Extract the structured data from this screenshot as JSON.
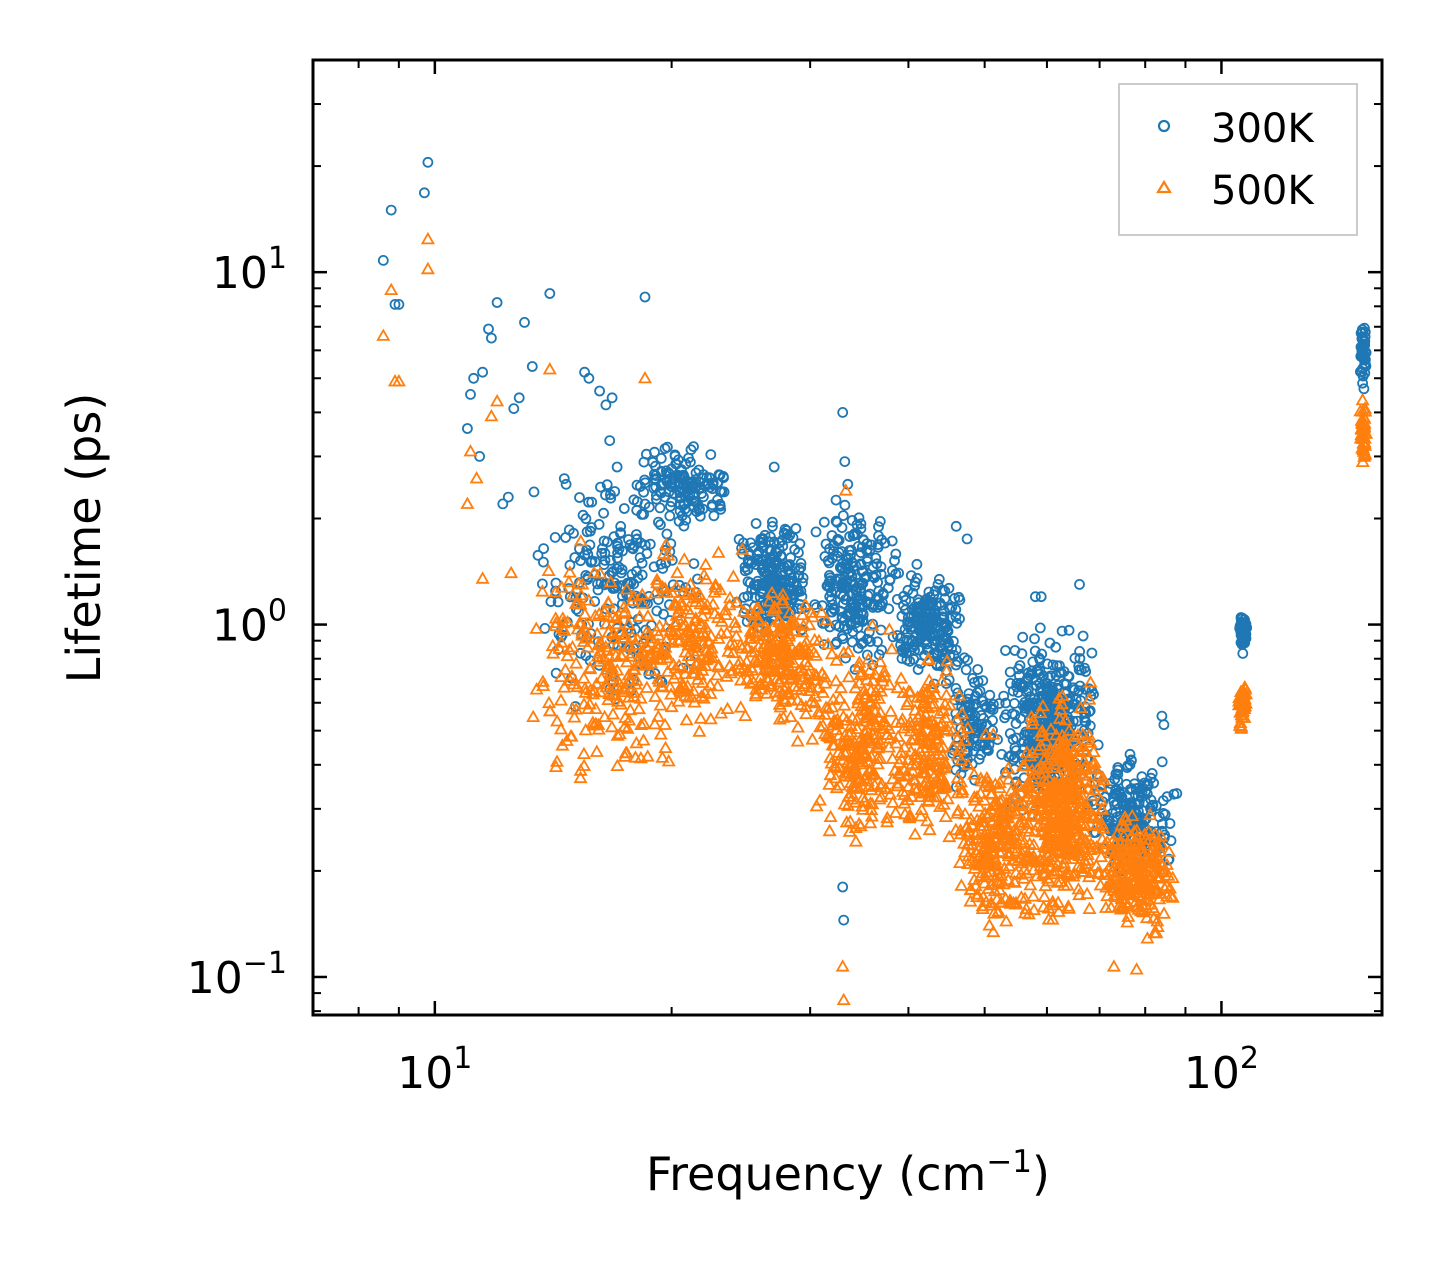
{
  "chart_data": {
    "type": "scatter",
    "title": "",
    "xlabel": "Frequency (cm",
    "xlabel_sup": "−1",
    "xlabel_close": ")",
    "ylabel": "Lifetime (ps)",
    "x_scale": "log",
    "y_scale": "log",
    "xlim": [
      7.0,
      160
    ],
    "ylim": [
      0.078,
      40
    ],
    "grid": false,
    "legend_position": "top-right",
    "x_ticks": [
      {
        "value": 10,
        "base": "10",
        "exp": "1"
      },
      {
        "value": 100,
        "base": "10",
        "exp": "2"
      }
    ],
    "y_ticks": [
      {
        "value": 0.1,
        "base": "10",
        "exp": "−1"
      },
      {
        "value": 1,
        "base": "10",
        "exp": "0"
      },
      {
        "value": 10,
        "base": "10",
        "exp": "1"
      }
    ],
    "series": [
      {
        "name": "300K",
        "marker": "circle-open",
        "color": "#1f77b4",
        "points": [
          [
            6.2,
            14.5
          ],
          [
            6.3,
            23.5
          ],
          [
            6.35,
            23.2
          ],
          [
            6.4,
            29.0
          ],
          [
            6.6,
            11.8
          ],
          [
            6.7,
            9.8
          ],
          [
            8.6,
            10.8
          ],
          [
            8.8,
            15.0
          ],
          [
            8.9,
            8.1
          ],
          [
            9.0,
            8.1
          ],
          [
            9.7,
            16.8
          ],
          [
            9.8,
            20.5
          ],
          [
            11.0,
            3.6
          ],
          [
            11.1,
            4.5
          ],
          [
            11.2,
            5.0
          ],
          [
            11.4,
            3.0
          ],
          [
            11.5,
            5.2
          ],
          [
            11.7,
            6.9
          ],
          [
            11.8,
            6.5
          ],
          [
            12.0,
            8.2
          ],
          [
            12.2,
            2.2
          ],
          [
            12.4,
            2.3
          ],
          [
            12.6,
            4.1
          ],
          [
            12.8,
            4.4
          ],
          [
            13.0,
            7.2
          ],
          [
            13.3,
            5.4
          ],
          [
            14.0,
            8.7
          ],
          [
            14.5,
            0.97
          ],
          [
            15.5,
            5.2
          ],
          [
            15.7,
            5.0
          ],
          [
            16.2,
            4.6
          ],
          [
            16.5,
            4.2
          ],
          [
            16.8,
            4.4
          ],
          [
            18.5,
            8.5
          ],
          [
            27.0,
            2.8
          ],
          [
            33.0,
            4.0
          ],
          [
            33.2,
            2.9
          ],
          [
            33.5,
            2.5
          ],
          [
            46.0,
            1.9
          ],
          [
            47.5,
            1.75
          ],
          [
            58.0,
            1.2
          ],
          [
            59.0,
            1.2
          ],
          [
            66.0,
            1.3
          ],
          [
            84.0,
            0.55
          ],
          [
            84.5,
            0.52
          ],
          [
            87.0,
            0.33
          ],
          [
            33.0,
            0.18
          ],
          [
            33.1,
            0.145
          ]
        ],
        "clusters": [
          {
            "x": [
              13.0,
              22.0
            ],
            "y": [
              0.5,
              3.6
            ],
            "count": 230
          },
          {
            "x": [
              18.0,
              24.0
            ],
            "y": [
              1.8,
              3.4
            ],
            "count": 150
          },
          {
            "x": [
              24.0,
              30.0
            ],
            "y": [
              0.8,
              2.2
            ],
            "count": 240
          },
          {
            "x": [
              30.0,
              39.0
            ],
            "y": [
              0.7,
              2.4
            ],
            "count": 230
          },
          {
            "x": [
              38.0,
              47.0
            ],
            "y": [
              0.6,
              1.7
            ],
            "count": 200
          },
          {
            "x": [
              45.0,
              52.0
            ],
            "y": [
              0.3,
              0.9
            ],
            "count": 110
          },
          {
            "x": [
              52.0,
              70.0
            ],
            "y": [
              0.25,
              1.1
            ],
            "count": 420
          },
          {
            "x": [
              68.0,
              88.0
            ],
            "y": [
              0.18,
              0.45
            ],
            "count": 200
          },
          {
            "x": [
              105.0,
              108.0
            ],
            "y": [
              0.8,
              1.15
            ],
            "count": 45
          },
          {
            "x": [
              150.0,
              153.0
            ],
            "y": [
              4.5,
              7.6
            ],
            "count": 45
          }
        ]
      },
      {
        "name": "500K",
        "marker": "triangle-open",
        "color": "#ff7f0e",
        "points": [
          [
            6.2,
            8.7
          ],
          [
            6.35,
            14.2
          ],
          [
            6.45,
            17.8
          ],
          [
            6.6,
            7.1
          ],
          [
            6.7,
            6.0
          ],
          [
            8.6,
            6.6
          ],
          [
            8.8,
            8.9
          ],
          [
            8.9,
            4.9
          ],
          [
            9.0,
            4.9
          ],
          [
            9.8,
            12.4
          ],
          [
            9.8,
            10.2
          ],
          [
            11.0,
            2.2
          ],
          [
            11.1,
            3.1
          ],
          [
            11.3,
            2.6
          ],
          [
            11.5,
            1.35
          ],
          [
            11.8,
            3.9
          ],
          [
            12.0,
            4.3
          ],
          [
            12.5,
            1.4
          ],
          [
            14.0,
            5.3
          ],
          [
            18.5,
            5.0
          ],
          [
            33.3,
            2.4
          ],
          [
            33.0,
            0.107
          ],
          [
            33.1,
            0.086
          ],
          [
            73.0,
            0.107
          ],
          [
            78.0,
            0.105
          ]
        ],
        "clusters": [
          {
            "x": [
              13.0,
              22.0
            ],
            "y": [
              0.29,
              2.0
            ],
            "count": 260
          },
          {
            "x": [
              18.0,
              26.0
            ],
            "y": [
              0.45,
              1.9
            ],
            "count": 180
          },
          {
            "x": [
              24.0,
              32.0
            ],
            "y": [
              0.45,
              1.4
            ],
            "count": 230
          },
          {
            "x": [
              30.0,
              40.0
            ],
            "y": [
              0.2,
              1.1
            ],
            "count": 260
          },
          {
            "x": [
              38.0,
              48.0
            ],
            "y": [
              0.2,
              1.0
            ],
            "count": 200
          },
          {
            "x": [
              46.0,
              58.0
            ],
            "y": [
              0.12,
              0.5
            ],
            "count": 260
          },
          {
            "x": [
              55.0,
              72.0
            ],
            "y": [
              0.12,
              0.72
            ],
            "count": 460
          },
          {
            "x": [
              70.0,
              88.0
            ],
            "y": [
              0.12,
              0.32
            ],
            "count": 230
          },
          {
            "x": [
              105.0,
              108.0
            ],
            "y": [
              0.48,
              0.72
            ],
            "count": 45
          },
          {
            "x": [
              150.0,
              153.0
            ],
            "y": [
              2.7,
              4.6
            ],
            "count": 45
          }
        ]
      }
    ]
  }
}
